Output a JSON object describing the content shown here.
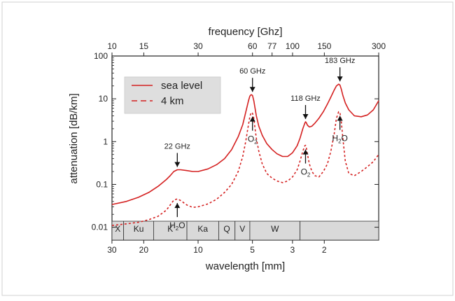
{
  "chart_data": {
    "type": "line",
    "x_top_label": "frequency [Ghz]",
    "x_bottom_label": "wavelength [mm]",
    "ylabel": "attenuation [dB/km]",
    "y_scale": "log",
    "ylim": [
      0.005,
      100
    ],
    "xlim_ghz": [
      10,
      300
    ],
    "x_scale": "log",
    "grid": false,
    "legend_position": "top-left",
    "top_ticks": [
      {
        "label": "10",
        "ghz": 10
      },
      {
        "label": "15",
        "ghz": 15
      },
      {
        "label": "30",
        "ghz": 30
      },
      {
        "label": "60",
        "ghz": 60
      },
      {
        "label": "77",
        "ghz": 77
      },
      {
        "label": "100",
        "ghz": 100
      },
      {
        "label": "150",
        "ghz": 150
      },
      {
        "label": "300",
        "ghz": 300
      }
    ],
    "bottom_ticks": [
      {
        "label": "30",
        "mm": 30
      },
      {
        "label": "20",
        "mm": 20
      },
      {
        "label": "10",
        "mm": 10
      },
      {
        "label": "5",
        "mm": 5
      },
      {
        "label": "3",
        "mm": 3
      },
      {
        "label": "2",
        "mm": 2
      }
    ],
    "y_ticks": [
      {
        "label": "0.01",
        "value": 0.01
      },
      {
        "label": "0.1",
        "value": 0.1
      },
      {
        "label": "1",
        "value": 1
      },
      {
        "label": "10",
        "value": 10
      },
      {
        "label": "100",
        "value": 100
      }
    ],
    "series": [
      {
        "name": "sea level",
        "color": "#d42020",
        "style": "solid",
        "x": [
          10,
          12,
          14,
          16,
          18,
          20,
          21,
          22,
          23,
          24,
          26,
          28,
          30,
          34,
          38,
          42,
          46,
          50,
          53,
          55,
          57,
          58,
          59,
          60,
          61,
          62,
          63,
          65,
          68,
          72,
          77,
          82,
          88,
          94,
          100,
          106,
          110,
          114,
          117,
          118,
          119,
          121,
          124,
          128,
          133,
          140,
          148,
          156,
          163,
          170,
          175,
          180,
          183,
          186,
          190,
          196,
          205,
          220,
          240,
          260,
          280,
          300
        ],
        "y": [
          0.034,
          0.04,
          0.05,
          0.065,
          0.09,
          0.13,
          0.16,
          0.2,
          0.22,
          0.22,
          0.21,
          0.2,
          0.2,
          0.23,
          0.29,
          0.4,
          0.65,
          1.3,
          2.5,
          4.8,
          9.0,
          11.5,
          12.5,
          12.0,
          9.0,
          6.0,
          4.0,
          2.3,
          1.4,
          0.9,
          0.65,
          0.52,
          0.45,
          0.45,
          0.55,
          0.8,
          1.2,
          2.0,
          2.7,
          2.9,
          2.8,
          2.4,
          2.2,
          2.3,
          2.7,
          3.5,
          5.0,
          7.5,
          11.0,
          16.0,
          20.0,
          22.0,
          21.0,
          17.0,
          12.0,
          8.0,
          5.5,
          4.0,
          3.8,
          4.2,
          5.5,
          9.0
        ]
      },
      {
        "name": "4 km",
        "color": "#d42020",
        "style": "dashed",
        "x": [
          10,
          12,
          14,
          16,
          18,
          20,
          21,
          22,
          23,
          24,
          26,
          28,
          30,
          34,
          38,
          42,
          46,
          50,
          53,
          55,
          57,
          58,
          59,
          60,
          61,
          62,
          63,
          65,
          68,
          72,
          77,
          82,
          88,
          94,
          100,
          106,
          110,
          114,
          117,
          118,
          119,
          121,
          124,
          128,
          133,
          140,
          148,
          156,
          163,
          170,
          175,
          180,
          183,
          186,
          190,
          196,
          205,
          220,
          240,
          260,
          280,
          300
        ],
        "y": [
          0.011,
          0.012,
          0.013,
          0.015,
          0.018,
          0.025,
          0.033,
          0.043,
          0.046,
          0.042,
          0.033,
          0.029,
          0.03,
          0.035,
          0.045,
          0.065,
          0.1,
          0.2,
          0.45,
          1.0,
          2.5,
          3.8,
          4.8,
          4.6,
          3.5,
          2.0,
          1.2,
          0.6,
          0.3,
          0.18,
          0.14,
          0.12,
          0.11,
          0.12,
          0.15,
          0.22,
          0.35,
          0.6,
          0.8,
          0.82,
          0.75,
          0.5,
          0.3,
          0.2,
          0.16,
          0.15,
          0.2,
          0.3,
          0.6,
          1.5,
          3.5,
          5.0,
          4.8,
          3.0,
          1.2,
          0.35,
          0.18,
          0.16,
          0.2,
          0.26,
          0.34,
          0.5
        ]
      }
    ],
    "legend": [
      {
        "label": "sea level",
        "style": "solid"
      },
      {
        "label": "4 km",
        "style": "dashed"
      }
    ],
    "annotations": [
      {
        "text": "22 GHz",
        "ghz": 23,
        "value": 0.22,
        "dir": "down"
      },
      {
        "text": "60 GHz",
        "ghz": 60,
        "value": 12.5,
        "dir": "down"
      },
      {
        "text": "118 GHz",
        "ghz": 118,
        "value": 2.9,
        "dir": "down"
      },
      {
        "text": "183 GHz",
        "ghz": 183,
        "value": 22,
        "dir": "down"
      }
    ],
    "molecule_labels": [
      {
        "base": "H",
        "sub": "2",
        "tail": "O",
        "ghz": 23,
        "value": 0.046
      },
      {
        "base": "O",
        "sub": "2",
        "tail": "",
        "ghz": 60,
        "value": 4.8
      },
      {
        "base": "O",
        "sub": "2",
        "tail": "",
        "ghz": 118,
        "value": 0.82
      },
      {
        "base": "H",
        "sub": "2",
        "tail": "O",
        "ghz": 183,
        "value": 5.0
      }
    ],
    "bands": [
      {
        "label": "X",
        "from_ghz": 10,
        "to_ghz": 11.6
      },
      {
        "label": "Ku",
        "from_ghz": 11.6,
        "to_ghz": 17
      },
      {
        "label": "K",
        "from_ghz": 17,
        "to_ghz": 26
      },
      {
        "label": "Ka",
        "from_ghz": 26,
        "to_ghz": 39
      },
      {
        "label": "Q",
        "from_ghz": 39,
        "to_ghz": 48
      },
      {
        "label": "V",
        "from_ghz": 48,
        "to_ghz": 58
      },
      {
        "label": "W",
        "from_ghz": 58,
        "to_ghz": 110
      },
      {
        "label": "",
        "from_ghz": 110,
        "to_ghz": 300
      }
    ]
  }
}
